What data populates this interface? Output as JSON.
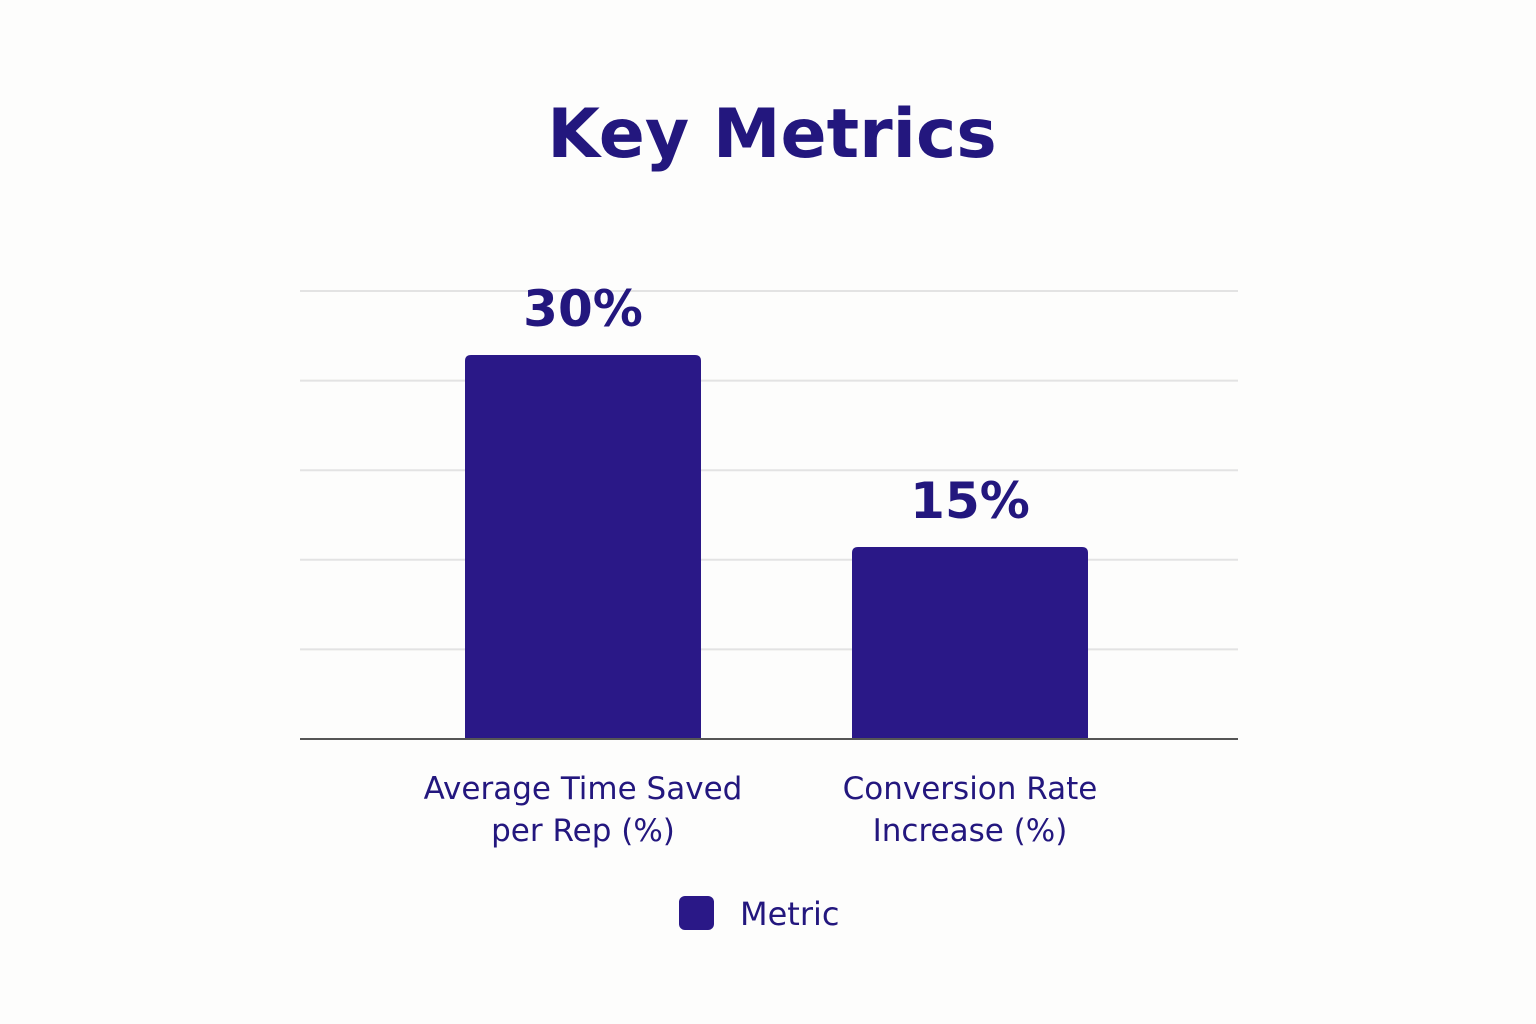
{
  "chart_data": {
    "type": "bar",
    "title": "Key Metrics",
    "categories": [
      [
        "Average Time Saved",
        "per Rep (%)"
      ],
      [
        "Conversion Rate",
        "Increase (%)"
      ]
    ],
    "series": [
      {
        "name": "Metric",
        "values": [
          30,
          15
        ],
        "labels": [
          "30%",
          "15%"
        ],
        "color": "#2a1887"
      }
    ],
    "ylim": [
      0,
      35
    ],
    "gridlines": [
      0,
      7,
      14,
      21,
      28,
      35
    ],
    "grid": true,
    "y_tick_labels_shown": false,
    "legend_position": "bottom-center",
    "colors": {
      "bar": "#2a1887",
      "text": "#23177e",
      "grid": "#e3e3e3",
      "axis": "#555555"
    }
  }
}
